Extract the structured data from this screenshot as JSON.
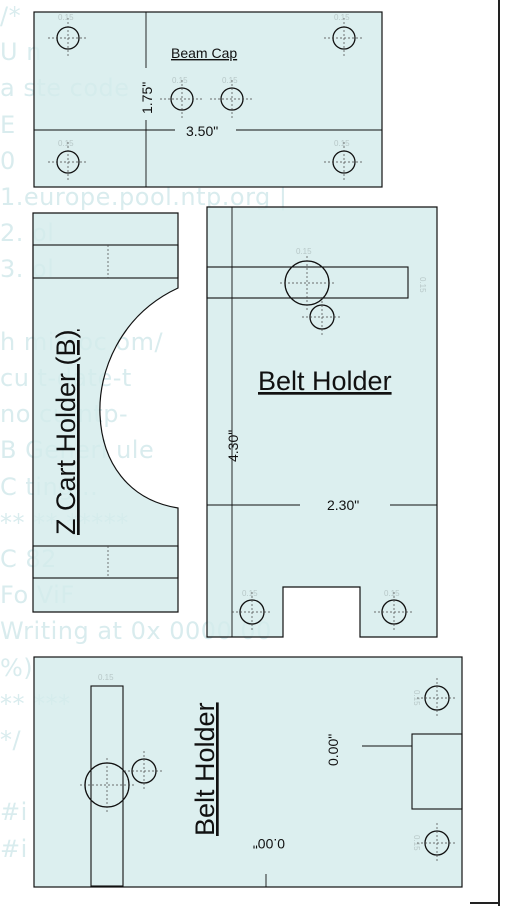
{
  "background_code": [
    "/*",
    " U                                            n",
    " a                                    ste code",
    " E",
    " 0",
    "1.europe.pool.ntp.org |",
    "2.              ol",
    "3.              ol",
    "",
    " h    microc                              om/",
    "cu      t-date-t",
    "no    cu-ntp-",
    " B      Generi                          ule",
    " C        ting...",
    "  **                **                   *****",
    " C                82",
    " Fo              ViF",
    " Writing at 0x        0000               00",
    "%)",
    "  **                                      ***",
    "*/",
    "",
    "#i",
    " #i"
  ],
  "beam_cap": {
    "title": "Beam Cap",
    "width_dim": "3.50\"",
    "height_dim": "1.75\"",
    "hole_label": "0.15"
  },
  "z_cart_holder": {
    "title": "Z Cart Holder (B)"
  },
  "belt_holder": {
    "title": "Belt Holder",
    "height_dim": "4.30\"",
    "width_dim": "2.30\"",
    "hole_label": "0.15"
  },
  "belt_holder_2": {
    "title": "Belt Holder",
    "dim_vertical": "0.00\"",
    "dim_inverted": "0.00\""
  }
}
